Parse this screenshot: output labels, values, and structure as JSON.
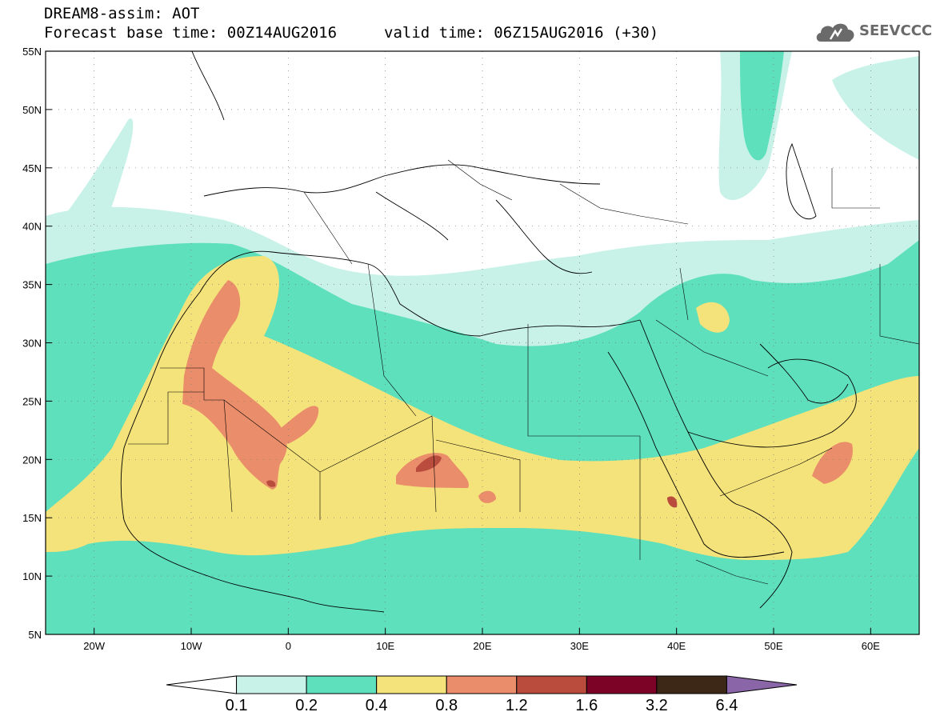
{
  "title": {
    "line1": "DREAM8-assim: AOT",
    "line2": "Forecast base time: 00Z14AUG2016",
    "line3": "valid time: 06Z15AUG2016 (+30)"
  },
  "logo": {
    "text": "SEEVCCC",
    "icon": "cloud-icon"
  },
  "map": {
    "lon_range": [
      -25,
      65
    ],
    "lat_range": [
      5,
      55
    ],
    "lon_ticks": [
      {
        "v": -20,
        "label": "20W"
      },
      {
        "v": -10,
        "label": "10W"
      },
      {
        "v": 0,
        "label": "0"
      },
      {
        "v": 10,
        "label": "10E"
      },
      {
        "v": 20,
        "label": "20E"
      },
      {
        "v": 30,
        "label": "30E"
      },
      {
        "v": 40,
        "label": "40E"
      },
      {
        "v": 50,
        "label": "50E"
      },
      {
        "v": 60,
        "label": "60E"
      }
    ],
    "lat_ticks": [
      {
        "v": 5,
        "label": "5N"
      },
      {
        "v": 10,
        "label": "10N"
      },
      {
        "v": 15,
        "label": "15N"
      },
      {
        "v": 20,
        "label": "20N"
      },
      {
        "v": 25,
        "label": "25N"
      },
      {
        "v": 30,
        "label": "30N"
      },
      {
        "v": 35,
        "label": "35N"
      },
      {
        "v": 40,
        "label": "40N"
      },
      {
        "v": 45,
        "label": "45N"
      },
      {
        "v": 50,
        "label": "50N"
      },
      {
        "v": 55,
        "label": "55N"
      }
    ],
    "grid": "dotted"
  },
  "colorbar": {
    "colors": [
      "#ffffff",
      "#c8f2e8",
      "#5ee0bc",
      "#f4e27a",
      "#ea8d6a",
      "#b94c3c",
      "#7c0226",
      "#3d2817",
      "#8a66a8"
    ],
    "labels": [
      "0.1",
      "0.2",
      "0.4",
      "0.8",
      "1.2",
      "1.6",
      "3.2",
      "6.4"
    ]
  }
}
